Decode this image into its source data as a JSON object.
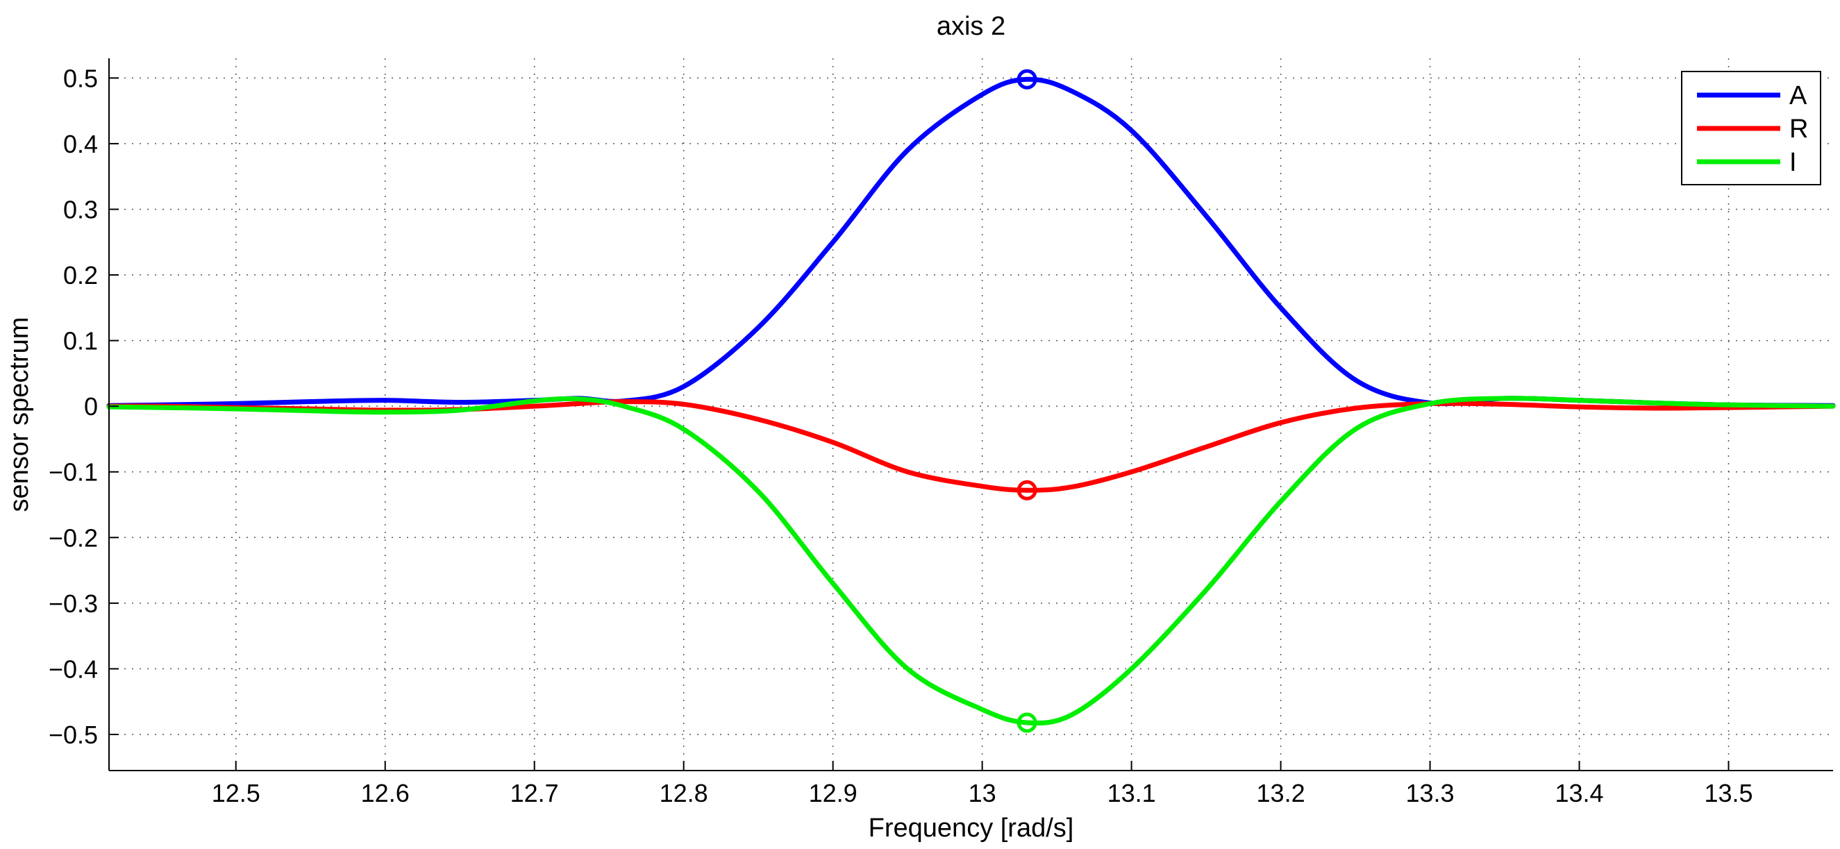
{
  "chart_data": {
    "type": "line",
    "title": "axis 2",
    "xlabel": "Frequency [rad/s]",
    "ylabel": "sensor spectrum",
    "xlim": [
      12.415,
      13.57
    ],
    "ylim": [
      -0.555,
      0.53
    ],
    "grid": true,
    "legend_position": "top-right",
    "x_ticks": [
      12.5,
      12.6,
      12.7,
      12.8,
      12.9,
      13.0,
      13.1,
      13.2,
      13.3,
      13.4,
      13.5
    ],
    "x_tick_labels": [
      "12.5",
      "12.6",
      "12.7",
      "12.8",
      "12.9",
      "13",
      "13.1",
      "13.2",
      "13.3",
      "13.4",
      "13.5"
    ],
    "y_ticks": [
      -0.5,
      -0.4,
      -0.3,
      -0.2,
      -0.1,
      0,
      0.1,
      0.2,
      0.3,
      0.4,
      0.5
    ],
    "y_tick_labels": [
      "−0.5",
      "−0.4",
      "−0.3",
      "−0.2",
      "−0.1",
      "0",
      "0.1",
      "0.2",
      "0.3",
      "0.4",
      "0.5"
    ],
    "x": [
      12.415,
      12.45,
      12.5,
      12.55,
      12.6,
      12.65,
      12.7,
      12.73,
      12.76,
      12.8,
      12.85,
      12.9,
      12.95,
      13.0,
      13.03,
      13.06,
      13.1,
      13.15,
      13.2,
      13.25,
      13.3,
      13.35,
      13.4,
      13.45,
      13.5,
      13.57
    ],
    "series": [
      {
        "name": "A",
        "color": "#0000ff",
        "values": [
          0.001,
          0.002,
          0.004,
          0.007,
          0.009,
          0.006,
          0.009,
          0.012,
          0.008,
          0.03,
          0.12,
          0.25,
          0.39,
          0.475,
          0.498,
          0.48,
          0.42,
          0.29,
          0.15,
          0.04,
          0.005,
          0.012,
          0.009,
          0.005,
          0.002,
          0.001
        ]
      },
      {
        "name": "R",
        "color": "#ff0000",
        "values": [
          0.0,
          0.0,
          -0.002,
          -0.004,
          -0.006,
          -0.005,
          0.0,
          0.004,
          0.007,
          0.003,
          -0.02,
          -0.055,
          -0.1,
          -0.122,
          -0.128,
          -0.123,
          -0.1,
          -0.062,
          -0.025,
          -0.003,
          0.004,
          0.003,
          -0.001,
          -0.003,
          -0.002,
          0.0
        ]
      },
      {
        "name": "I",
        "color": "#00ee00",
        "values": [
          -0.001,
          -0.002,
          -0.004,
          -0.007,
          -0.009,
          -0.006,
          0.008,
          0.011,
          0.0,
          -0.035,
          -0.13,
          -0.27,
          -0.4,
          -0.462,
          -0.482,
          -0.47,
          -0.4,
          -0.28,
          -0.145,
          -0.035,
          0.004,
          0.012,
          0.009,
          0.005,
          0.002,
          0.0
        ]
      }
    ],
    "markers": [
      {
        "series": "A",
        "x": 13.03,
        "y": 0.498,
        "shape": "circle"
      },
      {
        "series": "R",
        "x": 13.03,
        "y": -0.128,
        "shape": "circle"
      },
      {
        "series": "I",
        "x": 13.03,
        "y": -0.482,
        "shape": "circle"
      }
    ]
  }
}
